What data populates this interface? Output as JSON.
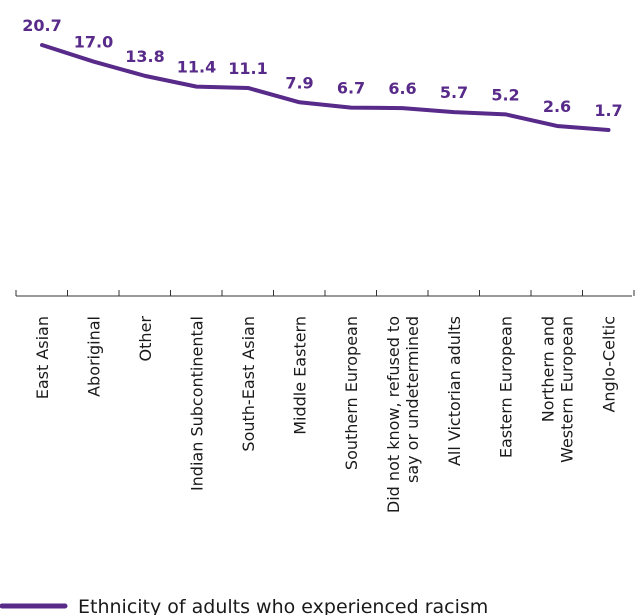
{
  "colors": {
    "series": "#582a89",
    "axis": "#333333",
    "text": "#1a1a1a"
  },
  "chart_data": {
    "type": "line",
    "categories": [
      [
        "East Asian"
      ],
      [
        "Aboriginal"
      ],
      [
        "Other"
      ],
      [
        "Indian Subcontinental"
      ],
      [
        "South-East Asian"
      ],
      [
        "Middle Eastern"
      ],
      [
        "Southern European"
      ],
      [
        "Did not know, refused to",
        "say or undetermined"
      ],
      [
        "All Victorian adults"
      ],
      [
        "Eastern European"
      ],
      [
        "Northern and",
        "Western European"
      ],
      [
        "Anglo-Celtic"
      ]
    ],
    "series": [
      {
        "name": "Ethnicity of adults who experienced racism",
        "values": [
          20.7,
          17.0,
          13.8,
          11.4,
          11.1,
          7.9,
          6.7,
          6.6,
          5.7,
          5.2,
          2.6,
          1.7
        ],
        "labels": [
          "20.7",
          "17.0",
          "13.8",
          "11.4",
          "11.1",
          "7.9",
          "6.7",
          "6.6",
          "5.7",
          "5.2",
          "2.6",
          "1.7"
        ]
      }
    ],
    "title": "",
    "xlabel": "",
    "ylabel": "",
    "ylim": [
      0,
      20.7
    ],
    "grid": false,
    "legend": "bottom-left"
  }
}
